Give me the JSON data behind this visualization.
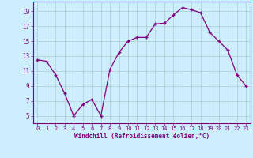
{
  "x": [
    0,
    1,
    2,
    3,
    4,
    5,
    6,
    7,
    8,
    9,
    10,
    11,
    12,
    13,
    14,
    15,
    16,
    17,
    18,
    19,
    20,
    21,
    22,
    23
  ],
  "y": [
    12.5,
    12.3,
    10.5,
    8.0,
    5.0,
    6.5,
    7.2,
    5.0,
    11.2,
    13.5,
    15.0,
    15.5,
    15.5,
    17.3,
    17.4,
    18.5,
    19.5,
    19.2,
    18.8,
    16.2,
    15.0,
    13.8,
    10.5,
    9.0
  ],
  "xlabel": "Windchill (Refroidissement éolien,°C)",
  "ylim": [
    4,
    20
  ],
  "xlim": [
    -0.5,
    23.5
  ],
  "yticks": [
    5,
    7,
    9,
    11,
    13,
    15,
    17,
    19
  ],
  "xticks": [
    0,
    1,
    2,
    3,
    4,
    5,
    6,
    7,
    8,
    9,
    10,
    11,
    12,
    13,
    14,
    15,
    16,
    17,
    18,
    19,
    20,
    21,
    22,
    23
  ],
  "line_color": "#800080",
  "marker": "+",
  "bg_color": "#cceeff",
  "grid_color": "#aacccc",
  "spine_color": "#800080",
  "tick_color": "#800080",
  "label_color": "#800080"
}
